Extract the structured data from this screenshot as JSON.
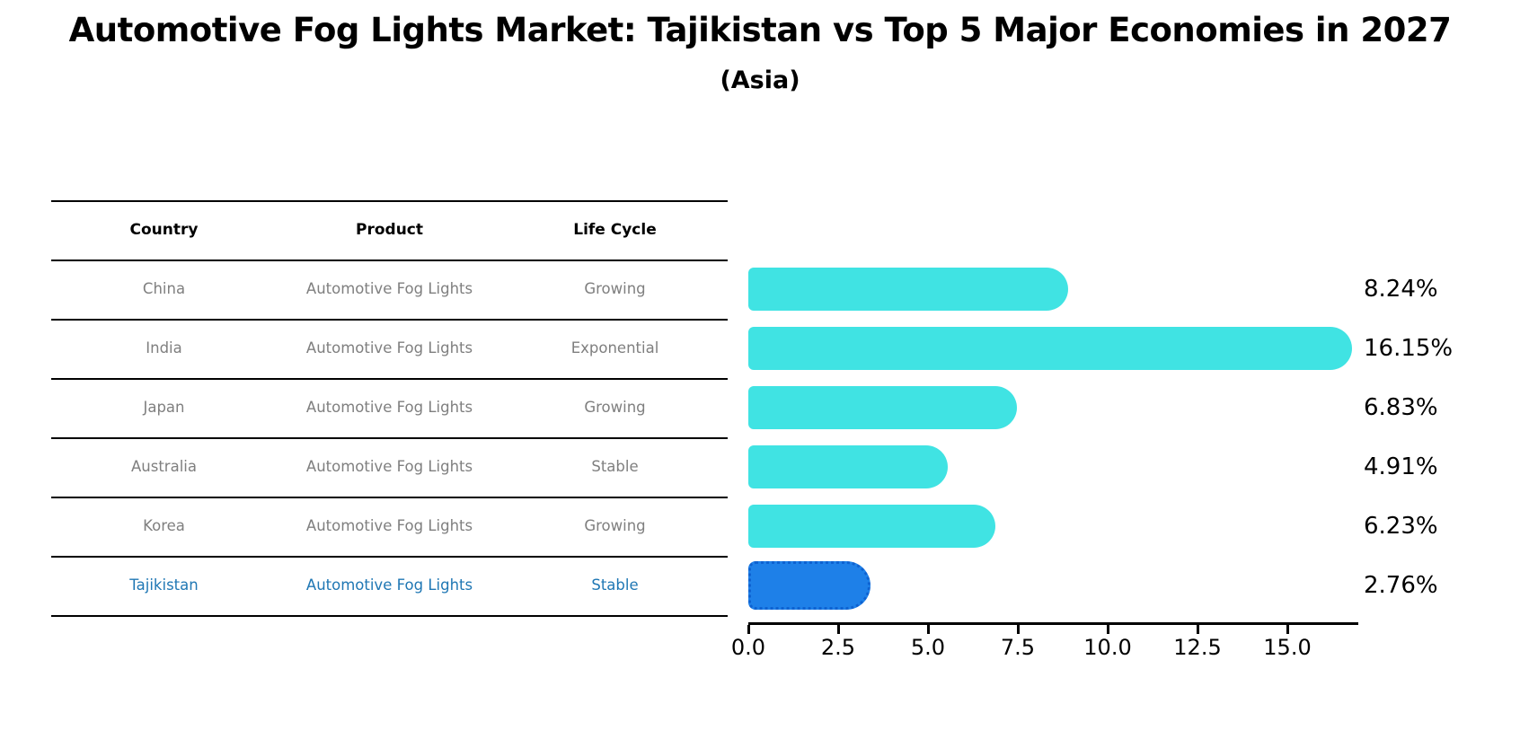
{
  "title": "Automotive Fog Lights Market: Tajikistan vs Top 5 Major Economies in 2027",
  "subtitle": "(Asia)",
  "table": {
    "columns": [
      "Country",
      "Product",
      "Life Cycle"
    ],
    "rows": [
      {
        "country": "China",
        "product": "Automotive Fog Lights",
        "life_cycle": "Growing",
        "highlight": false
      },
      {
        "country": "India",
        "product": "Automotive Fog Lights",
        "life_cycle": "Exponential",
        "highlight": false
      },
      {
        "country": "Japan",
        "product": "Automotive Fog Lights",
        "life_cycle": "Growing",
        "highlight": false
      },
      {
        "country": "Australia",
        "product": "Automotive Fog Lights",
        "life_cycle": "Stable",
        "highlight": false
      },
      {
        "country": "Korea",
        "product": "Automotive Fog Lights",
        "life_cycle": "Growing",
        "highlight": false
      },
      {
        "country": "Tajikistan",
        "product": "Automotive Fog Lights",
        "life_cycle": "Stable",
        "highlight": true
      }
    ]
  },
  "chart_data": {
    "type": "bar",
    "orientation": "horizontal",
    "title": "Automotive Fog Lights Market: Tajikistan vs Top 5 Major Economies in 2027",
    "subtitle": "(Asia)",
    "categories": [
      "China",
      "India",
      "Japan",
      "Australia",
      "Korea",
      "Tajikistan"
    ],
    "values": [
      8.24,
      16.15,
      6.83,
      4.91,
      6.23,
      2.76
    ],
    "value_labels": [
      "8.24%",
      "16.15%",
      "6.83%",
      "4.91%",
      "6.23%",
      "2.76%"
    ],
    "xlabel": "",
    "ylabel": "",
    "xlim": [
      0.0,
      17.0
    ],
    "xticks": [
      "0.0",
      "2.5",
      "5.0",
      "7.5",
      "10.0",
      "12.5",
      "15.0"
    ],
    "xtick_values": [
      0.0,
      2.5,
      5.0,
      7.5,
      10.0,
      12.5,
      15.0
    ],
    "grid": false,
    "legend": "none",
    "bar_color": "#40E3E3",
    "highlight_color": "#1E80E8",
    "highlight_edge_color": "#0e62d1",
    "highlight_index": 5,
    "highlight_text_color": "#1f77b4",
    "row_text_color": "#7f7f7f"
  }
}
